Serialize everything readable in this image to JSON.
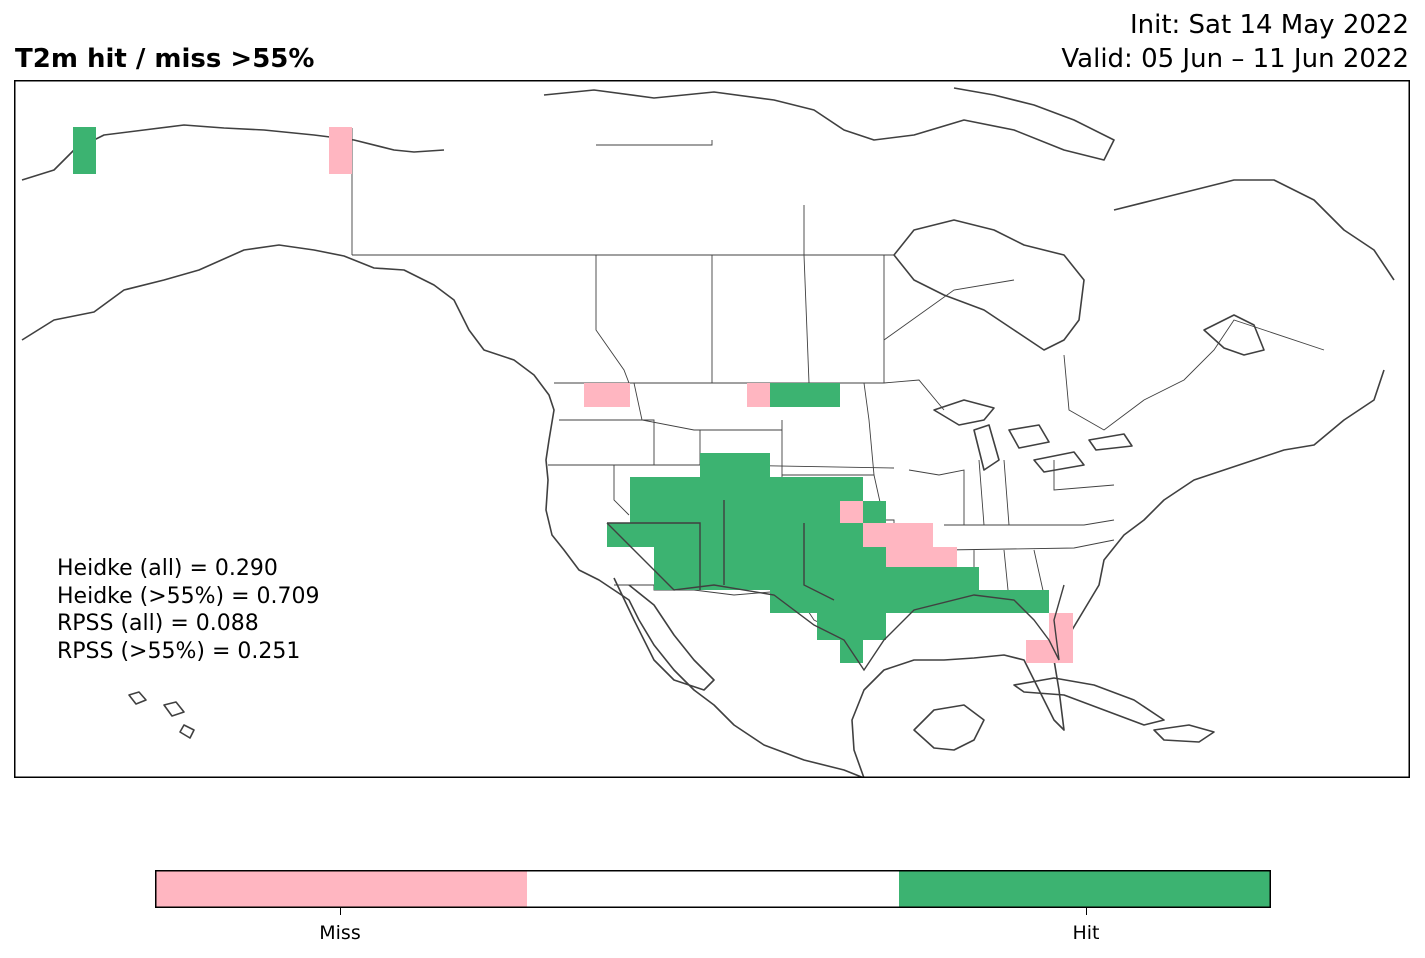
{
  "header": {
    "title": "T2m hit / miss  >55%",
    "init": "Init: Sat 14 May 2022",
    "valid": "Valid: 05 Jun – 11 Jun 2022"
  },
  "stats": {
    "heidke_all": "Heidke (all) = 0.290",
    "heidke_55": "Heidke (>55%) = 0.709",
    "rpss_all": "RPSS (all) = 0.088",
    "rpss_55": "RPSS (>55%) = 0.251"
  },
  "colors": {
    "hit": "#3cb371",
    "miss": "#ffb6c1",
    "neutral": "#ffffff",
    "coast": "#404040"
  },
  "legend": {
    "categories": [
      {
        "label": "Miss",
        "color": "#ffb6c1"
      },
      {
        "label": "",
        "color": "#ffffff"
      },
      {
        "label": "Hit",
        "color": "#3cb371"
      }
    ]
  }
}
